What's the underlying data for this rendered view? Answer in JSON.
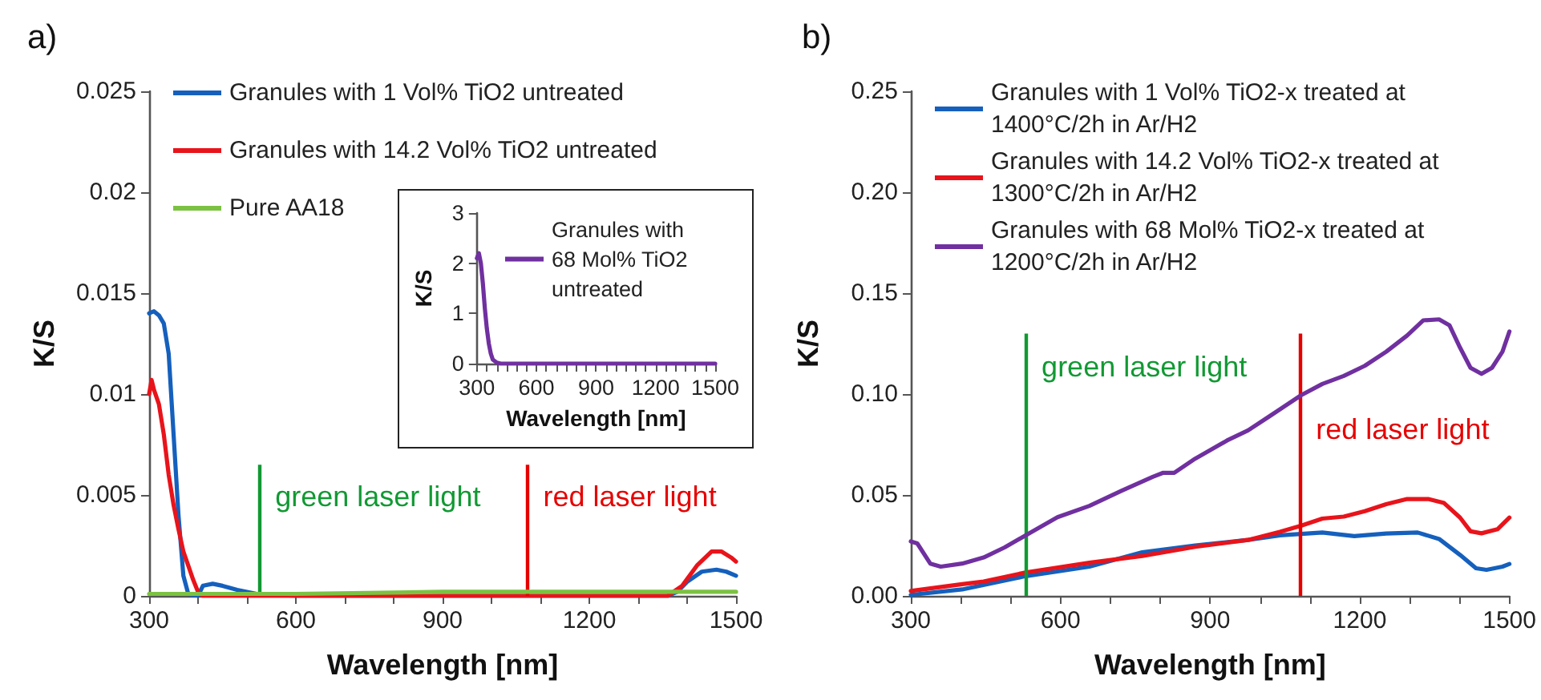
{
  "chart_data": [
    {
      "type": "line",
      "title": "a)",
      "xlabel": "Wavelength [nm]",
      "ylabel": "K/S",
      "legend": "top left",
      "grid": false,
      "marker": "none",
      "line_style": "solid",
      "xlim": [
        300,
        1500
      ],
      "xticks": [
        300,
        {
          "value": 400,
          "label": null
        },
        {
          "value": 500,
          "label": null
        },
        600,
        {
          "value": 700,
          "label": null
        },
        {
          "value": 800,
          "label": null
        },
        900,
        {
          "value": 1000,
          "label": null
        },
        {
          "value": 1100,
          "label": null
        },
        1200,
        {
          "value": 1300,
          "label": null
        },
        {
          "value": 1400,
          "label": null
        },
        1500
      ],
      "ylim": [
        0,
        0.025
      ],
      "yticks": [
        0,
        0.005,
        0.01,
        0.015,
        0.02,
        0.025
      ],
      "series": [
        {
          "name": "Granules with 1 Vol% TiO2 untreated",
          "color": "#1560bd",
          "x": [
            300,
            310,
            320,
            330,
            340,
            350,
            360,
            370,
            380,
            400,
            410,
            430,
            450,
            480,
            520,
            600,
            1000,
            1360,
            1380,
            1400,
            1430,
            1460,
            1480,
            1500
          ],
          "values": [
            0.014,
            0.0141,
            0.0139,
            0.0135,
            0.012,
            0.008,
            0.004,
            0.001,
            0.0001,
            0,
            0.0005,
            0.0006,
            0.0005,
            0.0003,
            0.0001,
            0,
            0,
            0,
            0.0002,
            0.0007,
            0.0012,
            0.0013,
            0.0012,
            0.001
          ]
        },
        {
          "name": "Granules with 14.2 Vol% TiO2 untreated",
          "color": "#e8141b",
          "x": [
            300,
            305,
            310,
            320,
            330,
            340,
            350,
            360,
            370,
            380,
            390,
            400,
            410,
            1000,
            1360,
            1390,
            1420,
            1450,
            1470,
            1490,
            1500
          ],
          "values": [
            0.01,
            0.0107,
            0.0102,
            0.0095,
            0.008,
            0.006,
            0.0045,
            0.0033,
            0.0022,
            0.0015,
            0.0008,
            0.0002,
            0,
            0,
            0,
            0.0005,
            0.0015,
            0.0022,
            0.0022,
            0.0019,
            0.0017
          ]
        },
        {
          "name": "Pure AA18",
          "color": "#7cc242",
          "x": [
            300,
            600,
            900,
            1200,
            1500
          ],
          "values": [
            0.0001,
            0.0001,
            0.0002,
            0.0002,
            0.0002
          ]
        }
      ],
      "ref_lines": [
        {
          "axis": "x",
          "value": 525,
          "label": "green laser light",
          "color": "#119933"
        },
        {
          "axis": "x",
          "value": 1073,
          "label": "red laser light",
          "color": "#e60000"
        }
      ]
    },
    {
      "type": "line",
      "xlabel": "Wavelength [nm]",
      "ylabel": "K/S",
      "legend": "top right",
      "grid": false,
      "marker": "none",
      "line_style": "solid",
      "xlim": [
        300,
        1500
      ],
      "xticks": [
        300,
        {
          "value": 350,
          "label": null
        },
        {
          "value": 400,
          "label": null
        },
        {
          "value": 450,
          "label": null
        },
        {
          "value": 500,
          "label": null
        },
        {
          "value": 550,
          "label": null
        },
        600,
        {
          "value": 650,
          "label": null
        },
        {
          "value": 700,
          "label": null
        },
        {
          "value": 750,
          "label": null
        },
        {
          "value": 800,
          "label": null
        },
        {
          "value": 850,
          "label": null
        },
        900,
        {
          "value": 950,
          "label": null
        },
        {
          "value": 1000,
          "label": null
        },
        {
          "value": 1050,
          "label": null
        },
        {
          "value": 1100,
          "label": null
        },
        {
          "value": 1150,
          "label": null
        },
        1200,
        {
          "value": 1250,
          "label": null
        },
        {
          "value": 1300,
          "label": null
        },
        {
          "value": 1350,
          "label": null
        },
        {
          "value": 1400,
          "label": null
        },
        {
          "value": 1450,
          "label": null
        },
        1500
      ],
      "ylim": [
        0,
        3
      ],
      "yticks": [
        0,
        1,
        2,
        3
      ],
      "series": [
        {
          "name": "Granules with 68 Mol% TiO2 untreated",
          "color": "#7030a0",
          "x": [
            300,
            310,
            320,
            330,
            340,
            350,
            360,
            370,
            380,
            400,
            420,
            1500
          ],
          "values": [
            2.1,
            2.2,
            2.0,
            1.6,
            1.1,
            0.7,
            0.4,
            0.2,
            0.08,
            0.02,
            0,
            0
          ]
        }
      ]
    },
    {
      "type": "line",
      "title": "b)",
      "xlabel": "Wavelength [nm]",
      "ylabel": "K/S",
      "legend": "top left",
      "grid": false,
      "marker": "none",
      "line_style": "solid",
      "xlim": [
        300,
        1500
      ],
      "xticks": [
        300,
        {
          "value": 400,
          "label": null
        },
        {
          "value": 500,
          "label": null
        },
        600,
        {
          "value": 700,
          "label": null
        },
        {
          "value": 800,
          "label": null
        },
        900,
        {
          "value": 1000,
          "label": null
        },
        {
          "value": 1100,
          "label": null
        },
        1200,
        {
          "value": 1300,
          "label": null
        },
        {
          "value": 1400,
          "label": null
        },
        1500
      ],
      "ylim": [
        0,
        0.25
      ],
      "yticks": [
        {
          "value": 0,
          "label": "0.00"
        },
        {
          "value": 0.05,
          "label": "0.05"
        },
        {
          "value": 0.1,
          "label": "0.10"
        },
        {
          "value": 0.15,
          "label": "0.15"
        },
        {
          "value": 0.2,
          "label": "0.20"
        },
        {
          "value": 0.25,
          "label": "0.25"
        }
      ],
      "series": [
        {
          "name": "Granules with 1 Vol% TiO2-x treated at 1400°C/2h in Ar/H2",
          "color": "#1560bd",
          "x": [
            300,
            403,
            530,
            658,
            764,
            870,
            976,
            1040,
            1125,
            1189,
            1253,
            1316,
            1359,
            1401,
            1433,
            1454,
            1486,
            1500
          ],
          "values": [
            0.0005,
            0.0032,
            0.0098,
            0.0145,
            0.0216,
            0.025,
            0.0277,
            0.03,
            0.0314,
            0.0296,
            0.0309,
            0.0314,
            0.0282,
            0.0203,
            0.0137,
            0.0129,
            0.0145,
            0.0158
          ]
        },
        {
          "name": "Granules with 14.2 Vol% TiO2-x treated at 1300°C/2h in Ar/H2",
          "color": "#e8141b",
          "x": [
            300,
            403,
            446,
            530,
            658,
            764,
            870,
            976,
            1040,
            1083,
            1125,
            1168,
            1210,
            1253,
            1295,
            1337,
            1369,
            1401,
            1422,
            1444,
            1476,
            1500
          ],
          "values": [
            0.0024,
            0.0058,
            0.0071,
            0.0116,
            0.0164,
            0.0198,
            0.0243,
            0.0277,
            0.0317,
            0.0348,
            0.0383,
            0.0393,
            0.042,
            0.0454,
            0.048,
            0.048,
            0.046,
            0.0388,
            0.032,
            0.031,
            0.033,
            0.0388
          ]
        },
        {
          "name": "Granules with 68 Mol% TiO2-x treated at 1200°C/2h in Ar/H2",
          "color": "#7030a0",
          "x": [
            300,
            313,
            339,
            360,
            403,
            446,
            488,
            530,
            594,
            658,
            722,
            785,
            806,
            828,
            870,
            934,
            976,
            1019,
            1083,
            1125,
            1168,
            1210,
            1253,
            1295,
            1327,
            1359,
            1380,
            1401,
            1422,
            1444,
            1465,
            1486,
            1500
          ],
          "values": [
            0.027,
            0.026,
            0.016,
            0.0145,
            0.016,
            0.019,
            0.024,
            0.03,
            0.039,
            0.0446,
            0.052,
            0.059,
            0.061,
            0.061,
            0.068,
            0.077,
            0.082,
            0.089,
            0.0995,
            0.105,
            0.109,
            0.114,
            0.121,
            0.129,
            0.1365,
            0.137,
            0.134,
            0.123,
            0.113,
            0.11,
            0.113,
            0.121,
            0.131
          ]
        }
      ],
      "ref_lines": [
        {
          "axis": "x",
          "value": 530,
          "label": "green laser light",
          "color": "#119933"
        },
        {
          "axis": "x",
          "value": 1080,
          "label": "red laser light",
          "color": "#e60000"
        }
      ]
    }
  ]
}
